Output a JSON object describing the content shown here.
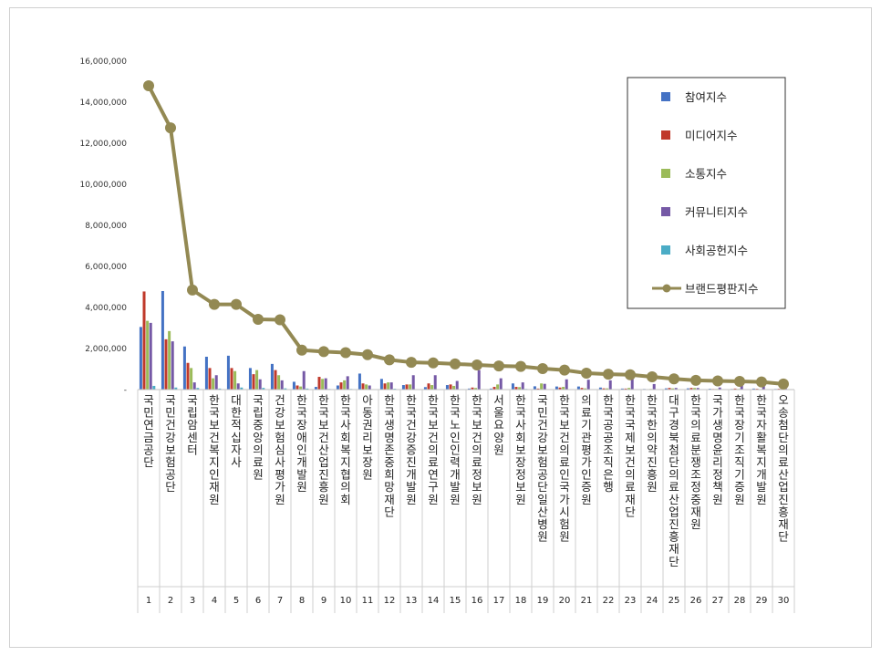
{
  "chart_data": {
    "type": "bar",
    "ylim": [
      0,
      16000000
    ],
    "y_ticks": [
      "16,000,000",
      "14,000,000",
      "12,000,000",
      "10,000,000",
      "8,000,000",
      "6,000,000",
      "4,000,000",
      "2,000,000",
      "-"
    ],
    "y_tick_values": [
      16000000,
      14000000,
      12000000,
      10000000,
      8000000,
      6000000,
      4000000,
      2000000,
      0
    ],
    "grid": false,
    "legend_position": "top-right",
    "categories": [
      "국민연금공단",
      "국민건강보험공단",
      "국립암센터",
      "한국보건복지인재원",
      "대한적십자사",
      "국립중앙의료원",
      "건강보험심사평가원",
      "한국장애인개발원",
      "한국보건산업진흥원",
      "한국사회복지협의회",
      "아동권리보장원",
      "한국생명존중희망재단",
      "한국건강증진개발원",
      "한국보건의료연구원",
      "한국노인인력개발원",
      "한국보건의료정보원",
      "서울요양원",
      "한국사회보장정보원",
      "국민건강보험공단 일산병원",
      "한국보건의료인국가시험원",
      "의료기관평가인증원",
      "한국공공조직은행",
      "한국국제보건의료재단",
      "한국한의약진흥원",
      "대구경북첨단의료산업진흥재단",
      "한국의료분쟁조정중재원",
      "국가생명윤리정책원",
      "한국장기조직기증원",
      "한국자활복지개발원",
      "오송첨단의료산업진흥재단"
    ],
    "ranks": [
      "1",
      "2",
      "3",
      "4",
      "5",
      "6",
      "7",
      "8",
      "9",
      "10",
      "11",
      "12",
      "13",
      "14",
      "15",
      "16",
      "17",
      "18",
      "19",
      "20",
      "21",
      "22",
      "23",
      "24",
      "25",
      "26",
      "27",
      "28",
      "29",
      "30"
    ],
    "series": [
      {
        "name": "참여지수",
        "color": "#4472c4",
        "kind": "bar",
        "values": [
          3050000,
          4800000,
          2100000,
          1600000,
          1650000,
          1050000,
          1250000,
          380000,
          130000,
          200000,
          780000,
          520000,
          220000,
          120000,
          220000,
          50000,
          50000,
          300000,
          160000,
          150000,
          150000,
          100000,
          50000,
          30000,
          60000,
          60000,
          40000,
          30000,
          50000,
          30000
        ]
      },
      {
        "name": "미디어지수",
        "color": "#c0392b",
        "kind": "bar",
        "values": [
          4780000,
          2450000,
          1300000,
          1050000,
          1050000,
          750000,
          950000,
          200000,
          620000,
          350000,
          300000,
          300000,
          250000,
          300000,
          250000,
          100000,
          130000,
          130000,
          50000,
          100000,
          80000,
          60000,
          50000,
          20000,
          80000,
          80000,
          30000,
          50000,
          40000,
          40000
        ]
      },
      {
        "name": "소통지수",
        "color": "#9bbb59",
        "kind": "bar",
        "values": [
          3350000,
          2850000,
          1050000,
          550000,
          900000,
          950000,
          700000,
          150000,
          520000,
          450000,
          250000,
          350000,
          250000,
          220000,
          180000,
          80000,
          250000,
          120000,
          300000,
          130000,
          60000,
          60000,
          80000,
          30000,
          60000,
          80000,
          30000,
          30000,
          20000,
          60000
        ]
      },
      {
        "name": "커뮤니티지수",
        "color": "#7559a6",
        "kind": "bar",
        "values": [
          3250000,
          2350000,
          350000,
          700000,
          300000,
          500000,
          450000,
          900000,
          550000,
          650000,
          200000,
          350000,
          700000,
          700000,
          420000,
          950000,
          550000,
          350000,
          280000,
          500000,
          480000,
          450000,
          520000,
          270000,
          80000,
          80000,
          100000,
          250000,
          180000,
          80000
        ]
      },
      {
        "name": "사회공헌지수",
        "color": "#4bacc6",
        "kind": "bar",
        "values": [
          180000,
          100000,
          80000,
          50000,
          100000,
          80000,
          60000,
          50000,
          30000,
          30000,
          20000,
          40000,
          20000,
          20000,
          20000,
          20000,
          20000,
          30000,
          20000,
          20000,
          20000,
          20000,
          20000,
          20000,
          20000,
          20000,
          20000,
          20000,
          20000,
          20000
        ]
      },
      {
        "name": "브랜드평판지수",
        "color": "#938953",
        "kind": "line",
        "values": [
          14800000,
          12750000,
          4850000,
          4150000,
          4150000,
          3420000,
          3400000,
          1920000,
          1850000,
          1800000,
          1700000,
          1450000,
          1330000,
          1300000,
          1250000,
          1200000,
          1150000,
          1130000,
          1020000,
          950000,
          800000,
          750000,
          720000,
          620000,
          520000,
          450000,
          420000,
          400000,
          370000,
          270000
        ]
      }
    ]
  }
}
